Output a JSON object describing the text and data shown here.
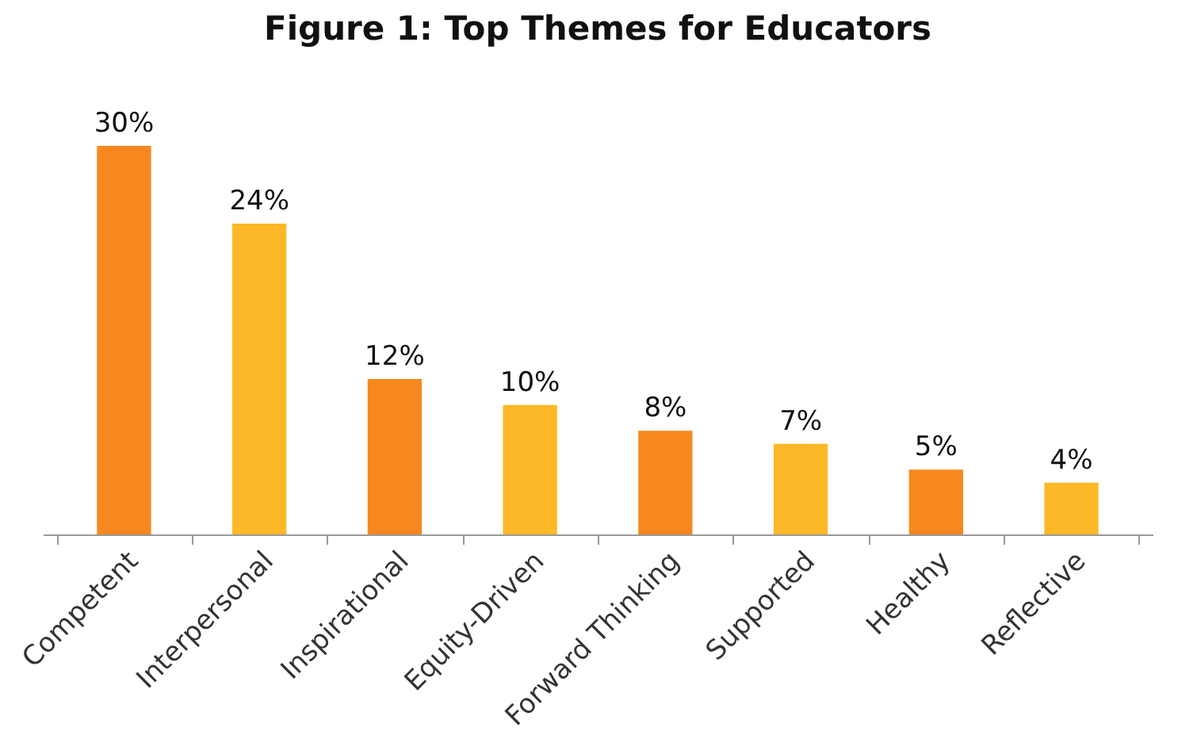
{
  "chart_data": {
    "type": "bar",
    "title": "Figure 1: Top Themes for Educators",
    "categories": [
      "Competent",
      "Interpersonal",
      "Inspirational",
      "Equity-Driven",
      "Forward Thinking",
      "Supported",
      "Healthy",
      "Reflective"
    ],
    "values": [
      30,
      24,
      12,
      10,
      8,
      7,
      5,
      4
    ],
    "colors": [
      "#f7881f",
      "#fcb826",
      "#f7881f",
      "#fcb826",
      "#f7881f",
      "#fcb826",
      "#f7881f",
      "#fcb826"
    ],
    "value_labels": [
      "30%",
      "24%",
      "12%",
      "10%",
      "8%",
      "7%",
      "5%",
      "4%"
    ]
  }
}
